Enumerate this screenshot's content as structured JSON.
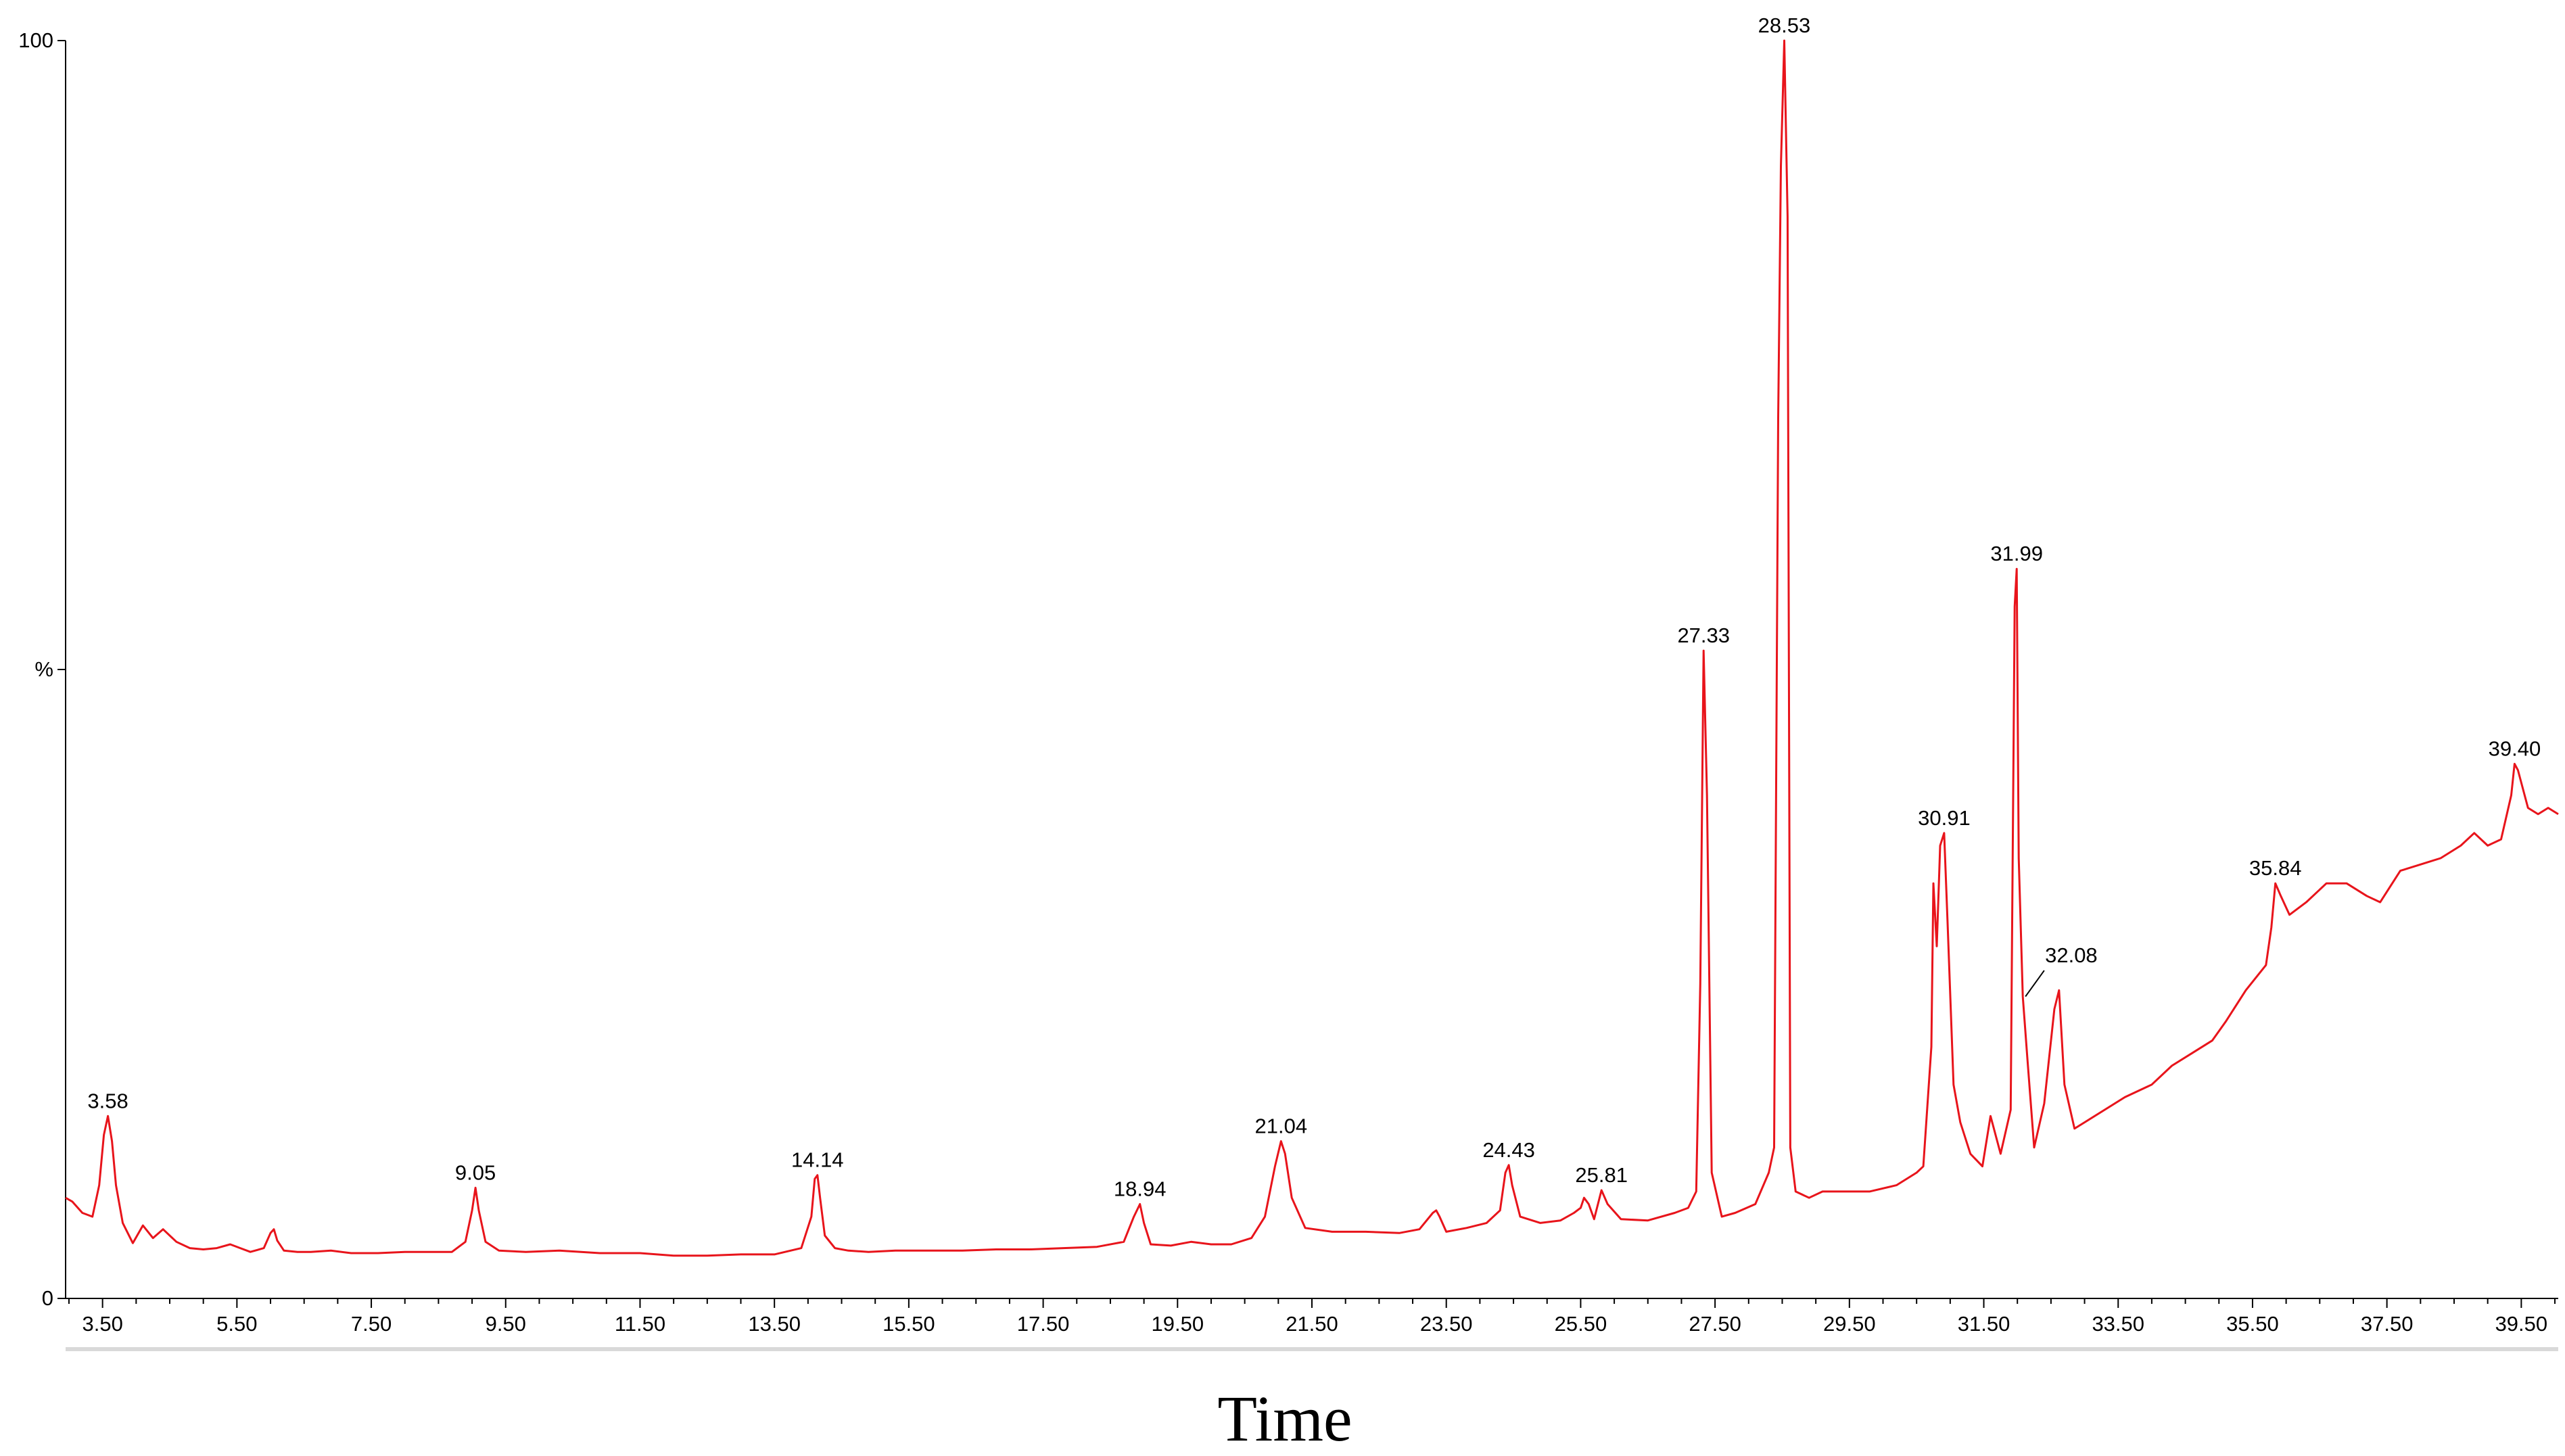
{
  "chart_data": {
    "type": "line",
    "title": "",
    "xlabel": "Time",
    "ylabel": "%",
    "xlim": [
      2.95,
      40.05
    ],
    "ylim": [
      0,
      100
    ],
    "grid": false,
    "line_color": "#e8141b",
    "y_ticks": [
      {
        "value": 100,
        "label": "100"
      },
      {
        "value": 50,
        "label": "%"
      },
      {
        "value": 0,
        "label": "0"
      }
    ],
    "x_ticks": [
      "3.50",
      "5.50",
      "7.50",
      "9.50",
      "11.50",
      "13.50",
      "15.50",
      "17.50",
      "19.50",
      "21.50",
      "23.50",
      "25.50",
      "27.50",
      "29.50",
      "31.50",
      "33.50",
      "35.50",
      "37.50",
      "39.50"
    ],
    "peak_labels": [
      {
        "time": 3.58,
        "label": "3.58",
        "value": 14.5
      },
      {
        "time": 9.05,
        "label": "9.05",
        "value": 8.8
      },
      {
        "time": 14.14,
        "label": "14.14",
        "value": 9.8
      },
      {
        "time": 18.94,
        "label": "18.94",
        "value": 7.5
      },
      {
        "time": 21.04,
        "label": "21.04",
        "value": 12.5
      },
      {
        "time": 24.43,
        "label": "24.43",
        "value": 10.6
      },
      {
        "time": 25.81,
        "label": "25.81",
        "value": 8.6
      },
      {
        "time": 27.33,
        "label": "27.33",
        "value": 51.5
      },
      {
        "time": 28.53,
        "label": "28.53",
        "value": 100
      },
      {
        "time": 30.91,
        "label": "30.91",
        "value": 37
      },
      {
        "time": 31.99,
        "label": "31.99",
        "value": 58
      },
      {
        "time": 32.08,
        "label": "32.08",
        "value": 24
      },
      {
        "time": 35.84,
        "label": "35.84",
        "value": 33
      },
      {
        "time": 39.4,
        "label": "39.40",
        "value": 42.5
      }
    ],
    "series": [
      {
        "x": [
          2.95,
          3.05,
          3.2,
          3.35,
          3.45,
          3.52,
          3.58,
          3.64,
          3.7,
          3.8,
          3.95,
          4.1,
          4.25,
          4.4,
          4.6,
          4.8,
          5.0,
          5.2,
          5.4,
          5.55,
          5.7,
          5.9,
          6.0,
          6.05,
          6.1,
          6.2,
          6.4,
          6.6,
          6.9,
          7.2,
          7.6,
          8.0,
          8.4,
          8.7,
          8.9,
          9.0,
          9.05,
          9.1,
          9.2,
          9.4,
          9.8,
          10.3,
          10.9,
          11.5,
          12.0,
          12.5,
          13.0,
          13.5,
          13.9,
          14.05,
          14.1,
          14.14,
          14.18,
          14.25,
          14.4,
          14.6,
          14.9,
          15.3,
          15.8,
          16.3,
          16.8,
          17.3,
          17.8,
          18.3,
          18.7,
          18.85,
          18.94,
          19.0,
          19.1,
          19.4,
          19.7,
          20.0,
          20.3,
          20.6,
          20.8,
          20.95,
          21.04,
          21.1,
          21.2,
          21.4,
          21.8,
          22.3,
          22.8,
          23.1,
          23.3,
          23.35,
          23.4,
          23.5,
          23.8,
          24.1,
          24.3,
          24.38,
          24.43,
          24.48,
          24.6,
          24.9,
          25.2,
          25.4,
          25.5,
          25.55,
          25.62,
          25.7,
          25.81,
          25.9,
          26.1,
          26.5,
          26.9,
          27.1,
          27.22,
          27.28,
          27.33,
          27.38,
          27.45,
          27.6,
          27.8,
          28.1,
          28.3,
          28.38,
          28.44,
          28.48,
          28.53,
          28.58,
          28.62,
          28.7,
          28.9,
          29.1,
          29.4,
          29.8,
          30.2,
          30.5,
          30.6,
          30.72,
          30.75,
          30.8,
          30.85,
          30.91,
          30.96,
          31.05,
          31.15,
          31.3,
          31.48,
          31.6,
          31.75,
          31.9,
          31.96,
          31.99,
          32.02,
          32.08,
          32.15,
          32.25,
          32.4,
          32.55,
          32.62,
          32.7,
          32.85,
          33.0,
          33.3,
          33.6,
          34.0,
          34.3,
          34.6,
          34.9,
          35.1,
          35.4,
          35.7,
          35.78,
          35.84,
          35.92,
          36.05,
          36.3,
          36.6,
          36.9,
          37.2,
          37.4,
          37.7,
          38.0,
          38.3,
          38.6,
          38.8,
          39.0,
          39.2,
          39.35,
          39.4,
          39.45,
          39.6,
          39.75,
          39.9,
          40.05
        ],
        "y": [
          8.0,
          7.7,
          6.8,
          6.5,
          9.0,
          13.0,
          14.5,
          12.5,
          9.0,
          6.0,
          4.4,
          5.8,
          4.8,
          5.5,
          4.5,
          4.0,
          3.9,
          4.0,
          4.3,
          4.0,
          3.7,
          4.0,
          5.2,
          5.5,
          4.6,
          3.8,
          3.7,
          3.7,
          3.8,
          3.6,
          3.6,
          3.7,
          3.7,
          3.7,
          4.5,
          7.0,
          8.8,
          7.0,
          4.5,
          3.8,
          3.7,
          3.8,
          3.6,
          3.6,
          3.4,
          3.4,
          3.5,
          3.5,
          4.0,
          6.5,
          9.5,
          9.8,
          8.0,
          5.0,
          4.0,
          3.8,
          3.7,
          3.8,
          3.8,
          3.8,
          3.9,
          3.9,
          4.0,
          4.1,
          4.5,
          6.5,
          7.5,
          6.0,
          4.3,
          4.2,
          4.5,
          4.3,
          4.3,
          4.8,
          6.5,
          10.5,
          12.5,
          11.5,
          8.0,
          5.6,
          5.3,
          5.3,
          5.2,
          5.5,
          6.8,
          7.0,
          6.5,
          5.3,
          5.6,
          6.0,
          7.0,
          10.0,
          10.6,
          9.0,
          6.5,
          6.0,
          6.2,
          6.8,
          7.2,
          8.0,
          7.5,
          6.3,
          8.6,
          7.5,
          6.3,
          6.2,
          6.8,
          7.2,
          8.5,
          25.0,
          51.5,
          40.0,
          10.0,
          6.5,
          6.8,
          7.5,
          10.0,
          12.0,
          70.0,
          90.0,
          100,
          86.0,
          12.0,
          8.5,
          8.0,
          8.5,
          8.5,
          8.5,
          9.0,
          10.0,
          10.5,
          20.0,
          33.0,
          28.0,
          36.0,
          37.0,
          30.0,
          17.0,
          14.0,
          11.5,
          10.5,
          14.5,
          11.5,
          15.0,
          55.0,
          58.0,
          35.0,
          24.0,
          19.0,
          12.0,
          15.5,
          23.0,
          24.5,
          17.0,
          13.5,
          14.0,
          15.0,
          16.0,
          17.0,
          18.5,
          19.5,
          20.5,
          22.0,
          24.5,
          26.5,
          29.5,
          33.0,
          32.0,
          30.5,
          31.5,
          33.0,
          33.0,
          32.0,
          31.5,
          34.0,
          34.5,
          35.0,
          36.0,
          37.0,
          36.0,
          36.5,
          40.0,
          42.5,
          42.0,
          39.0,
          38.5,
          39.0,
          38.5
        ]
      }
    ]
  }
}
